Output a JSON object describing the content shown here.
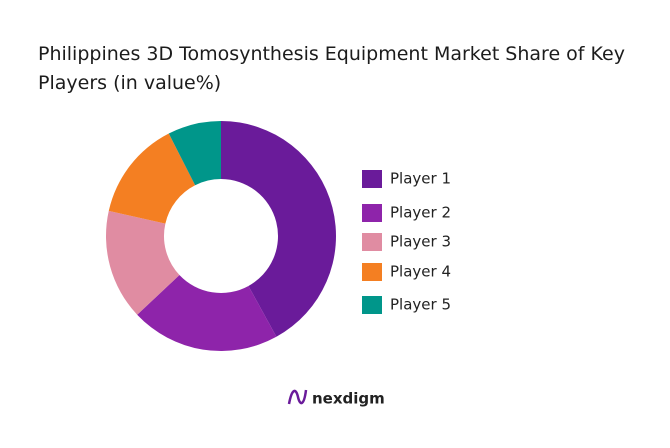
{
  "chart_data": {
    "type": "donut",
    "title": "Philippines 3D Tomosynthesis Equipment Market Share of Key Players (in value%)",
    "categories": [
      "Player 1",
      "Player 2",
      "Player 3",
      "Player 4",
      "Player 5"
    ],
    "values": [
      42,
      21,
      15.5,
      14,
      7.5
    ],
    "colors": [
      "#6a1b9a",
      "#8e24aa",
      "#e08ca2",
      "#f47f22",
      "#00968a"
    ],
    "legend": "right"
  },
  "footer": {
    "brand": "nexdigm"
  }
}
